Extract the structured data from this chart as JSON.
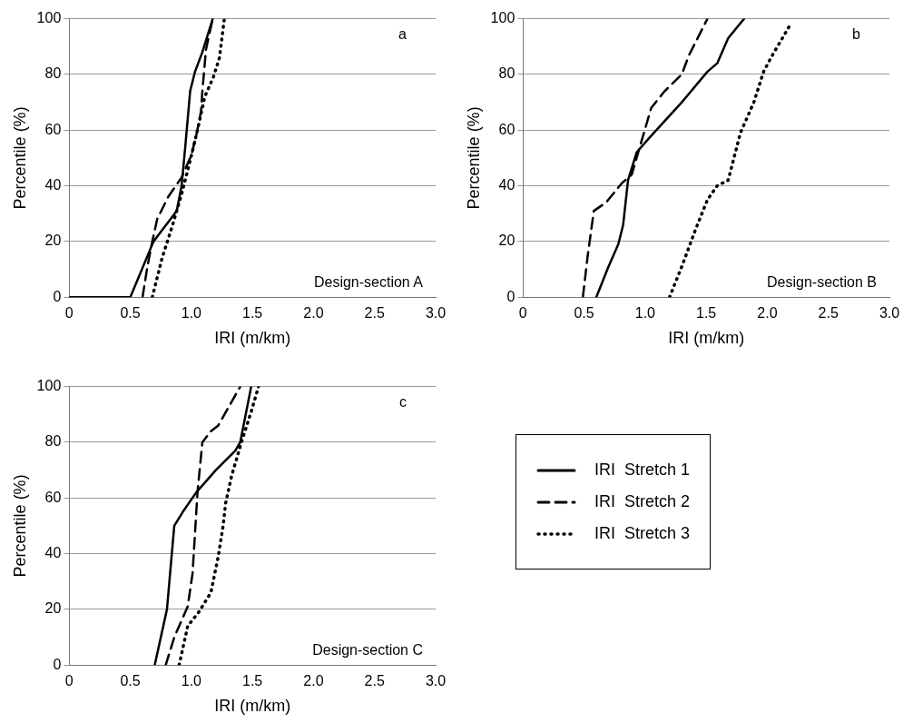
{
  "chart_data": [
    {
      "type": "line",
      "xlabel": "IRI (m/km)",
      "ylabel": "Percentile (%)",
      "annotations": [
        "a",
        "Design-section A"
      ],
      "xlim": [
        0,
        3
      ],
      "ylim": [
        0,
        100
      ],
      "xticks": [
        0,
        0.5,
        {
          "value": 1,
          "label": "1.0"
        },
        1.5,
        {
          "value": 2,
          "label": "2.0"
        },
        2.5,
        {
          "value": 3,
          "label": "3.0"
        }
      ],
      "yticks": [
        0,
        20,
        40,
        60,
        80,
        100
      ],
      "grid": "y",
      "legend": false,
      "series": [
        {
          "color": "#000000",
          "line_style": "solid",
          "x": [
            0,
            0.5,
            0.69,
            0.88,
            0.92,
            0.95,
            0.99,
            1.03,
            1.09,
            1.175
          ],
          "values": [
            0,
            0,
            20,
            31,
            40,
            54,
            74,
            81,
            88,
            100
          ]
        },
        {
          "color": "#000000",
          "line_style": "dashed",
          "x": [
            0.6,
            0.64,
            0.68,
            0.72,
            0.81,
            0.92,
            1.0,
            1.04,
            1.08,
            1.09,
            1.12,
            1.175
          ],
          "values": [
            0,
            11,
            20,
            28,
            36,
            43,
            51,
            58,
            67,
            74,
            89,
            100
          ]
        },
        {
          "color": "#000000",
          "line_style": "dotted",
          "x": [
            0.68,
            0.76,
            0.84,
            0.92,
            0.99,
            1.05,
            1.11,
            1.18,
            1.23,
            1.27
          ],
          "values": [
            0,
            14,
            25,
            37,
            49,
            60,
            72,
            79,
            86,
            100
          ]
        }
      ]
    },
    {
      "type": "line",
      "xlabel": "IRI (m/km)",
      "ylabel": "Percentile (%)",
      "annotations": [
        "b",
        "Design-section B"
      ],
      "xlim": [
        0,
        3
      ],
      "ylim": [
        0,
        100
      ],
      "xticks": [
        0,
        0.5,
        {
          "value": 1,
          "label": "1.0"
        },
        1.5,
        {
          "value": 2,
          "label": "2.0"
        },
        2.5,
        {
          "value": 3,
          "label": "3.0"
        }
      ],
      "yticks": [
        0,
        20,
        40,
        60,
        80,
        100
      ],
      "grid": "y",
      "legend": false,
      "series": [
        {
          "color": "#000000",
          "line_style": "solid",
          "x": [
            0.6,
            0.7,
            0.78,
            0.82,
            0.86,
            0.93,
            1.03,
            1.3,
            1.51,
            1.59,
            1.68,
            1.81
          ],
          "values": [
            0,
            11,
            19,
            26,
            42,
            52,
            57,
            70,
            81,
            84,
            93,
            100
          ]
        },
        {
          "color": "#000000",
          "line_style": "dashed",
          "x": [
            0.49,
            0.53,
            0.58,
            0.68,
            0.81,
            0.89,
            0.99,
            1.05,
            1.16,
            1.3,
            1.36,
            1.51
          ],
          "values": [
            0,
            15,
            31,
            34,
            41,
            44,
            59,
            68,
            74,
            80,
            87,
            100
          ]
        },
        {
          "color": "#000000",
          "line_style": "dotted",
          "x": [
            1.2,
            1.3,
            1.41,
            1.51,
            1.59,
            1.68,
            1.78,
            1.89,
            1.97,
            2.03,
            2.19
          ],
          "values": [
            0,
            11,
            24,
            35,
            40,
            42,
            59,
            70,
            81,
            86,
            98
          ]
        }
      ]
    },
    {
      "type": "line",
      "xlabel": "IRI (m/km)",
      "ylabel": "Percentile (%)",
      "annotations": [
        "c",
        "Design-section C"
      ],
      "xlim": [
        0,
        3
      ],
      "ylim": [
        0,
        100
      ],
      "xticks": [
        0,
        0.5,
        {
          "value": 1,
          "label": "1.0"
        },
        1.5,
        {
          "value": 2,
          "label": "2.0"
        },
        2.5,
        {
          "value": 3,
          "label": "3.0"
        }
      ],
      "yticks": [
        0,
        20,
        40,
        60,
        80,
        100
      ],
      "grid": "y",
      "legend": "right",
      "series": [
        {
          "name": "IRI  Stretch 1",
          "color": "#000000",
          "line_style": "solid",
          "x": [
            0.7,
            0.8,
            0.86,
            0.93,
            1.04,
            1.2,
            1.36,
            1.4,
            1.49
          ],
          "values": [
            0,
            20,
            50,
            55,
            62,
            70,
            77,
            80,
            100
          ]
        },
        {
          "name": "IRI  Stretch 2",
          "color": "#000000",
          "line_style": "dashed",
          "x": [
            0.79,
            0.86,
            0.97,
            1.01,
            1.05,
            1.09,
            1.16,
            1.22,
            1.4
          ],
          "values": [
            0,
            10,
            21,
            33,
            62,
            80,
            84,
            86,
            100
          ]
        },
        {
          "name": "IRI  Stretch 3",
          "color": "#000000",
          "line_style": "dotted",
          "x": [
            0.9,
            0.97,
            1.06,
            1.16,
            1.22,
            1.26,
            1.28,
            1.33,
            1.41,
            1.49,
            1.55
          ],
          "values": [
            0,
            14,
            19,
            26,
            39,
            50,
            58,
            68,
            80,
            91,
            100
          ]
        }
      ]
    }
  ]
}
